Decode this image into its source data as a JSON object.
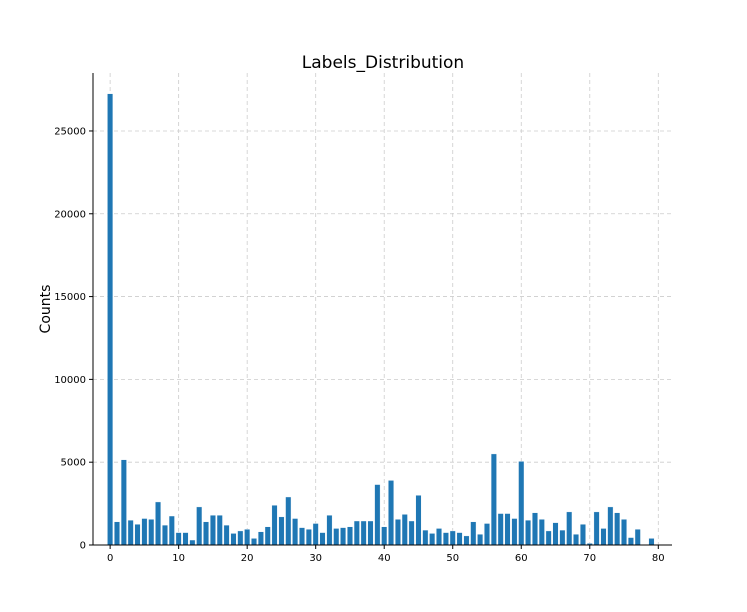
{
  "chart_data": {
    "type": "bar",
    "title": "Labels_Distribution",
    "xlabel": "",
    "ylabel": "Counts",
    "xlim": [
      -2.5,
      82
    ],
    "ylim": [
      0,
      28500
    ],
    "xticks": [
      0,
      10,
      20,
      30,
      40,
      50,
      60,
      70,
      80
    ],
    "yticks": [
      0,
      5000,
      10000,
      15000,
      20000,
      25000
    ],
    "grid": true,
    "bar_color": "#1f77b4",
    "x": [
      0,
      1,
      2,
      3,
      4,
      5,
      6,
      7,
      8,
      9,
      10,
      11,
      12,
      13,
      14,
      15,
      16,
      17,
      18,
      19,
      20,
      21,
      22,
      23,
      24,
      25,
      26,
      27,
      28,
      29,
      30,
      31,
      32,
      33,
      34,
      35,
      36,
      37,
      38,
      39,
      40,
      41,
      42,
      43,
      44,
      45,
      46,
      47,
      48,
      49,
      50,
      51,
      52,
      53,
      54,
      55,
      56,
      57,
      58,
      59,
      60,
      61,
      62,
      63,
      64,
      65,
      66,
      67,
      68,
      69,
      70,
      71,
      72,
      73,
      74,
      75,
      76,
      77,
      78,
      79
    ],
    "values": [
      27250,
      1400,
      5150,
      1500,
      1250,
      1600,
      1550,
      2600,
      1200,
      1750,
      750,
      750,
      300,
      2300,
      1400,
      1800,
      1800,
      1200,
      700,
      850,
      950,
      400,
      800,
      1100,
      2400,
      1700,
      2900,
      1600,
      1050,
      950,
      1300,
      750,
      1800,
      1000,
      1050,
      1100,
      1450,
      1450,
      1450,
      3650,
      1100,
      3900,
      1550,
      1850,
      1450,
      3000,
      900,
      700,
      1000,
      750,
      850,
      750,
      550,
      1400,
      650,
      1300,
      5500,
      1900,
      1900,
      1600,
      5050,
      1500,
      1950,
      1550,
      850,
      1350,
      900,
      2000,
      650,
      1250,
      100,
      2000,
      1000,
      2300,
      1950,
      1550,
      450,
      950,
      0,
      400
    ]
  }
}
